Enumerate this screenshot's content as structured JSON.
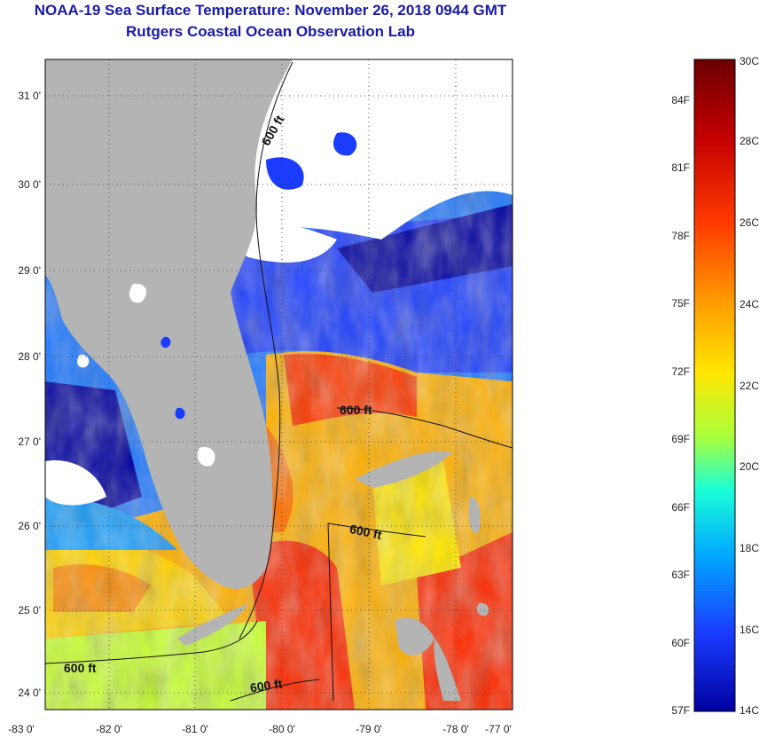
{
  "title": {
    "line1": "NOAA-19 Sea Surface Temperature:  November 26, 2018 0944 GMT",
    "line2": "Rutgers Coastal Ocean Observation Lab"
  },
  "axes": {
    "lat_labels": [
      "31 0'",
      "30 0'",
      "29 0'",
      "28 0'",
      "27 0'",
      "26 0'",
      "25 0'",
      "24 0'"
    ],
    "lon_labels": [
      "-83 0'",
      "-82 0'",
      "-81 0'",
      "-80 0'",
      "-79 0'",
      "-78 0'",
      "-77 0'"
    ]
  },
  "contour_label": "600 ft",
  "colorbar": {
    "celsius": [
      "30C",
      "28C",
      "26C",
      "24C",
      "22C",
      "20C",
      "18C",
      "16C",
      "14C"
    ],
    "fahrenheit": [
      "84F",
      "81F",
      "78F",
      "75F",
      "72F",
      "69F",
      "66F",
      "63F",
      "60F",
      "57F"
    ],
    "colors": [
      "#6b0000",
      "#c40000",
      "#ff3a00",
      "#ff9a00",
      "#ffe600",
      "#a8ff3c",
      "#1affd6",
      "#00a8ff",
      "#1a3cff",
      "#0000a0"
    ]
  },
  "colors": {
    "land": "#b4b4b4",
    "cloud": "#ffffff",
    "title": "#1a1aa6"
  }
}
